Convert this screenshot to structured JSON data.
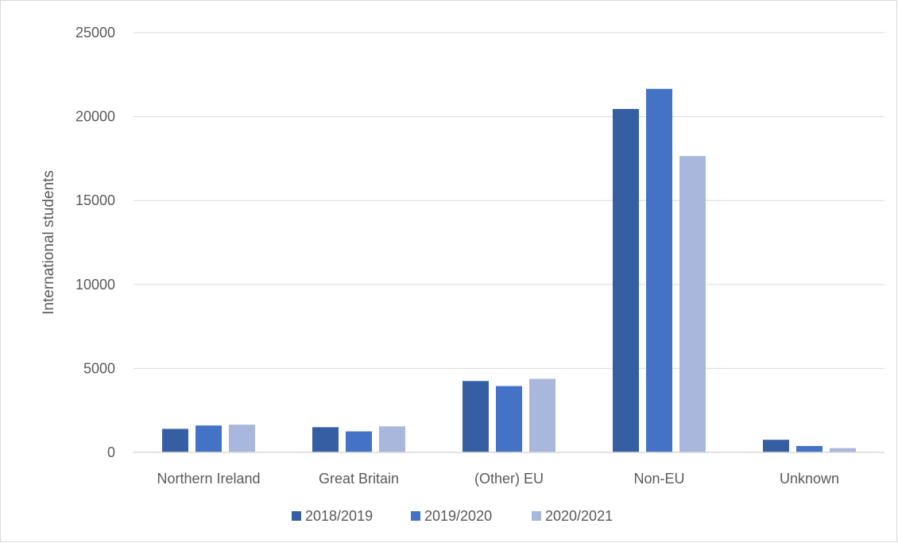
{
  "chart_data": {
    "type": "bar",
    "title": "",
    "xlabel": "",
    "ylabel": "International students",
    "ylim": [
      0,
      25000
    ],
    "yticks": [
      0,
      5000,
      10000,
      15000,
      20000,
      25000
    ],
    "grid": true,
    "legend_position": "bottom",
    "categories": [
      "Northern Ireland",
      "Great Britain",
      "(Other) EU",
      "Non-EU",
      "Unknown"
    ],
    "series": [
      {
        "name": "2018/2019",
        "color": "#365FA3",
        "values": [
          1400,
          1500,
          4250,
          20450,
          750
        ]
      },
      {
        "name": "2019/2020",
        "color": "#4472C4",
        "values": [
          1600,
          1250,
          3950,
          21650,
          380
        ]
      },
      {
        "name": "2020/2021",
        "color": "#A9B7DC",
        "values": [
          1650,
          1550,
          4380,
          17650,
          250
        ]
      }
    ]
  }
}
